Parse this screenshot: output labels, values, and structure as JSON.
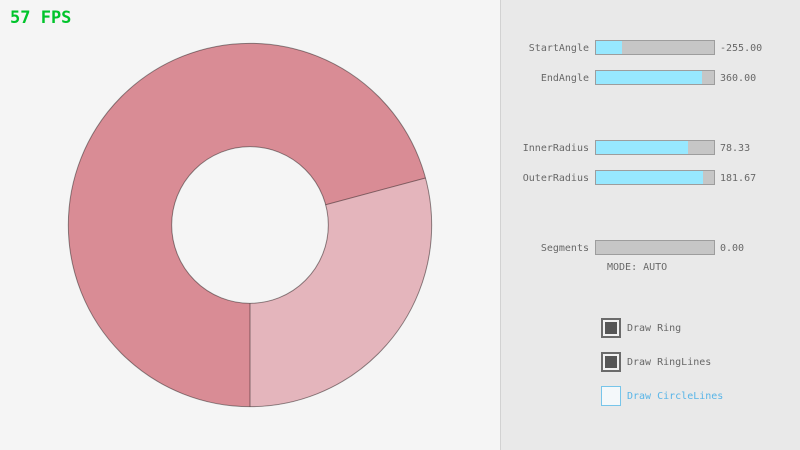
{
  "fps_label": "57 FPS",
  "colors": {
    "fps_green": "#00c42b",
    "ring_dark": "#d98c95",
    "ring_light": "#e4b5bc",
    "ring_line": "rgba(0,0,0,0.42)",
    "slider_fill_cyan": "#97e8ff",
    "panel_bg": "#e9e9e9",
    "text_gray": "#686868",
    "focus_blue": "#59b5e8"
  },
  "ring": {
    "start_angle": -255.0,
    "end_angle": 360.0,
    "inner_radius": 78.33,
    "outer_radius": 181.67,
    "segments": 0.0,
    "mode": "AUTO"
  },
  "panel": {
    "sliders": [
      {
        "label": "StartAngle",
        "value": "-255.00",
        "fill_pct": 21.7
      },
      {
        "label": "EndAngle",
        "value": "360.00",
        "fill_pct": 90.0
      },
      {
        "label": "InnerRadius",
        "value": "78.33",
        "fill_pct": 78.3
      },
      {
        "label": "OuterRadius",
        "value": "181.67",
        "fill_pct": 90.8
      },
      {
        "label": "Segments",
        "value": "0.00",
        "fill_pct": 0
      }
    ],
    "mode_text": "MODE: AUTO",
    "checkboxes": [
      {
        "label": "Draw Ring",
        "checked": true
      },
      {
        "label": "Draw RingLines",
        "checked": true
      },
      {
        "label": "Draw CircleLines",
        "checked": false
      }
    ]
  }
}
